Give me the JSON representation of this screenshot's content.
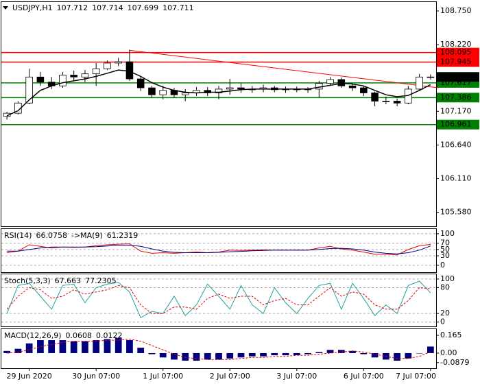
{
  "chart_data": [
    {
      "type": "candlestick",
      "title": "USDJPY,H1",
      "ohlc": [
        107.712,
        107.714,
        107.699,
        107.711
      ],
      "categories": [
        null,
        null,
        "29 Jun 2020",
        null,
        null,
        null,
        null,
        null,
        "30 Jun 07:00",
        null,
        null,
        null,
        null,
        null,
        "1 Jul 07:00",
        null,
        null,
        null,
        null,
        null,
        "2 Jul 07:00",
        null,
        null,
        null,
        null,
        null,
        "3 Jul 07:00",
        null,
        null,
        null,
        null,
        null,
        "6 Jul 07:00",
        null,
        null,
        null,
        null,
        null,
        "7 Jul 07:00"
      ],
      "open": [
        107.09,
        107.14,
        107.3,
        107.71,
        107.63,
        107.57,
        107.74,
        107.71,
        107.76,
        107.84,
        107.93,
        107.95,
        107.68,
        107.54,
        107.43,
        107.5,
        107.43,
        107.46,
        107.5,
        107.46,
        107.52,
        107.54,
        107.52,
        107.52,
        107.54,
        107.51,
        107.52,
        107.51,
        107.52,
        107.61,
        107.67,
        107.57,
        107.54,
        107.46,
        107.33,
        107.33,
        107.3,
        107.52,
        107.71
      ],
      "high": [
        107.16,
        107.33,
        107.84,
        107.79,
        107.71,
        107.79,
        107.81,
        107.82,
        107.93,
        107.97,
        108.01,
        108.14,
        107.71,
        107.57,
        107.57,
        107.54,
        107.52,
        107.55,
        107.55,
        107.57,
        107.68,
        107.61,
        107.57,
        107.59,
        107.57,
        107.56,
        107.56,
        107.55,
        107.65,
        107.71,
        107.7,
        107.6,
        107.57,
        107.48,
        107.4,
        107.37,
        107.57,
        107.76,
        107.75
      ],
      "low": [
        107.04,
        107.12,
        107.28,
        107.57,
        107.52,
        107.54,
        107.65,
        107.63,
        107.57,
        107.82,
        107.88,
        107.65,
        107.49,
        107.39,
        107.36,
        107.38,
        107.33,
        107.41,
        107.41,
        107.36,
        107.43,
        107.46,
        107.46,
        107.47,
        107.47,
        107.46,
        107.47,
        107.46,
        107.39,
        107.57,
        107.54,
        107.49,
        107.41,
        107.25,
        107.28,
        107.25,
        107.28,
        107.49,
        107.67
      ],
      "close": [
        107.14,
        107.3,
        107.71,
        107.63,
        107.57,
        107.74,
        107.71,
        107.76,
        107.84,
        107.93,
        107.95,
        107.68,
        107.54,
        107.43,
        107.5,
        107.43,
        107.46,
        107.5,
        107.46,
        107.52,
        107.54,
        107.52,
        107.52,
        107.54,
        107.51,
        107.52,
        107.51,
        107.52,
        107.61,
        107.67,
        107.57,
        107.54,
        107.46,
        107.33,
        107.33,
        107.3,
        107.52,
        107.71,
        107.711
      ],
      "ma": {
        "color": "#000000",
        "values": [
          107.1,
          107.18,
          107.35,
          107.5,
          107.57,
          107.62,
          107.65,
          107.68,
          107.72,
          107.77,
          107.82,
          107.8,
          107.72,
          107.62,
          107.55,
          107.5,
          107.47,
          107.46,
          107.47,
          107.47,
          107.49,
          107.51,
          107.52,
          107.52,
          107.52,
          107.52,
          107.52,
          107.52,
          107.55,
          107.58,
          107.61,
          107.6,
          107.57,
          107.5,
          107.43,
          107.4,
          107.42,
          107.5,
          107.59
        ]
      },
      "levels": [
        {
          "value": 108.095,
          "color": "#ff0000"
        },
        {
          "value": 107.945,
          "color": "#ff0000"
        },
        {
          "value": 107.617,
          "color": "#008000"
        },
        {
          "value": 107.386,
          "color": "#008000"
        },
        {
          "value": 106.961,
          "color": "#008000"
        }
      ],
      "trendline": {
        "start_index": 11,
        "start": 108.13,
        "end_index": 38.7,
        "end": 107.54,
        "color": "#ff0000"
      },
      "ylim": [
        105.36,
        108.89
      ],
      "yticks": [
        {
          "value": 108.75,
          "label": "108.750"
        },
        {
          "value": 108.22,
          "label": "108.220"
        },
        {
          "value": 107.17,
          "label": "107.170"
        },
        {
          "value": 106.64,
          "label": "106.640"
        },
        {
          "value": 106.11,
          "label": "106.110"
        },
        {
          "value": 105.58,
          "label": "105.580"
        }
      ],
      "grid": false
    },
    {
      "type": "line",
      "series": [
        {
          "name": "RSI(14)",
          "color": "#e00000",
          "values": [
            40,
            45,
            65,
            60,
            55,
            58,
            57,
            58,
            62,
            65,
            67,
            68,
            45,
            38,
            40,
            38,
            40,
            42,
            40,
            42,
            48,
            47,
            48,
            49,
            48,
            48,
            48,
            48,
            55,
            60,
            52,
            48,
            42,
            35,
            35,
            33,
            50,
            62,
            66.0758
          ]
        },
        {
          "name": "->MA(9)",
          "color": "#000080",
          "values": [
            45,
            45,
            50,
            55,
            58,
            58,
            58,
            58,
            59,
            61,
            63,
            64,
            60,
            52,
            45,
            41,
            40,
            40,
            40,
            41,
            43,
            44,
            46,
            47,
            48,
            48,
            48,
            48,
            50,
            53,
            54,
            52,
            48,
            42,
            38,
            36,
            40,
            48,
            61.2319
          ]
        }
      ],
      "ylim": [
        -22,
        115
      ],
      "yticks": [
        100,
        70,
        50,
        30,
        0
      ],
      "grid": true
    },
    {
      "type": "line",
      "title": "Stoch(5,3,3)",
      "series": [
        {
          "color": "#20a0a0",
          "values": [
            20,
            85,
            90,
            60,
            30,
            85,
            88,
            45,
            80,
            88,
            92,
            70,
            10,
            25,
            20,
            60,
            15,
            40,
            88,
            60,
            30,
            85,
            40,
            20,
            80,
            45,
            20,
            55,
            85,
            90,
            30,
            90,
            55,
            15,
            40,
            20,
            85,
            95,
            67.663
          ]
        },
        {
          "color": "#e00000",
          "dash": true,
          "values": [
            30,
            60,
            80,
            75,
            55,
            60,
            75,
            65,
            70,
            75,
            85,
            80,
            40,
            20,
            20,
            35,
            35,
            30,
            55,
            65,
            55,
            60,
            60,
            40,
            50,
            55,
            40,
            40,
            60,
            80,
            60,
            70,
            65,
            40,
            30,
            30,
            50,
            80,
            77.2305
          ]
        }
      ],
      "ylim": [
        -10,
        111
      ],
      "yticks": [
        100,
        80,
        20,
        0
      ],
      "grid": true
    },
    {
      "type": "bar",
      "title": "MACD(12,26,9)",
      "series": [
        {
          "color": "#000080",
          "values": [
            0.02,
            0.04,
            0.09,
            0.12,
            0.12,
            0.12,
            0.11,
            0.11,
            0.12,
            0.13,
            0.14,
            0.12,
            0.05,
            -0.01,
            -0.04,
            -0.06,
            -0.07,
            -0.07,
            -0.06,
            -0.06,
            -0.05,
            -0.04,
            -0.03,
            -0.03,
            -0.02,
            -0.02,
            -0.02,
            -0.01,
            0.01,
            0.03,
            0.03,
            0.02,
            -0.01,
            -0.04,
            -0.06,
            -0.07,
            -0.05,
            0.0,
            0.0608
          ]
        },
        {
          "color": "#e00000",
          "dash": true,
          "values": [
            0.0,
            0.01,
            0.03,
            0.06,
            0.08,
            0.1,
            0.11,
            0.11,
            0.11,
            0.12,
            0.12,
            0.13,
            0.11,
            0.07,
            0.03,
            -0.01,
            -0.04,
            -0.05,
            -0.06,
            -0.06,
            -0.06,
            -0.05,
            -0.04,
            -0.04,
            -0.03,
            -0.03,
            -0.02,
            -0.02,
            -0.01,
            0.0,
            0.01,
            0.02,
            0.01,
            -0.01,
            -0.03,
            -0.05,
            -0.05,
            -0.03,
            0.0122
          ]
        }
      ],
      "ylim": [
        -0.14,
        0.222
      ],
      "yticks": [
        0.165,
        {
          "value": 0,
          "label": "0.00"
        },
        -0.0879
      ],
      "grid": false
    }
  ]
}
